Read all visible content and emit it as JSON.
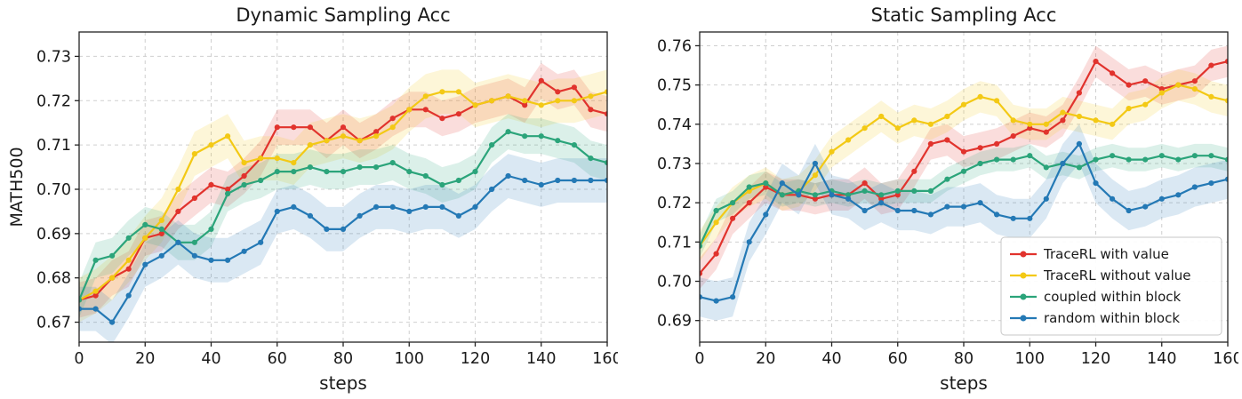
{
  "figure": {
    "background": "#ffffff"
  },
  "chart_data": [
    {
      "type": "line",
      "title": "Dynamic Sampling Acc",
      "xlabel": "steps",
      "ylabel": "MATH500",
      "xlim": [
        0,
        160
      ],
      "ylim": [
        0.6655,
        0.7355
      ],
      "xticks": [
        0,
        20,
        40,
        60,
        80,
        100,
        120,
        140,
        160
      ],
      "yticks": [
        0.67,
        0.68,
        0.69,
        0.7,
        0.71,
        0.72,
        0.73
      ],
      "grid": true,
      "legend": false,
      "x": [
        0,
        5,
        10,
        15,
        20,
        25,
        30,
        35,
        40,
        45,
        50,
        55,
        60,
        65,
        70,
        75,
        80,
        85,
        90,
        95,
        100,
        105,
        110,
        115,
        120,
        125,
        130,
        135,
        140,
        145,
        150,
        155,
        160
      ],
      "series": [
        {
          "name": "TraceRL with value",
          "color": "#e1332d",
          "band": 0.004,
          "values": [
            0.675,
            0.676,
            0.68,
            0.682,
            0.689,
            0.69,
            0.695,
            0.698,
            0.701,
            0.7,
            0.703,
            0.707,
            0.714,
            0.714,
            0.714,
            0.711,
            0.714,
            0.711,
            0.713,
            0.716,
            0.718,
            0.718,
            0.716,
            0.717,
            0.719,
            0.72,
            0.721,
            0.719,
            0.7245,
            0.722,
            0.723,
            0.718,
            0.717
          ]
        },
        {
          "name": "TraceRL without value",
          "color": "#f3c915",
          "band": 0.005,
          "values": [
            0.675,
            0.677,
            0.68,
            0.684,
            0.689,
            0.693,
            0.7,
            0.708,
            0.71,
            0.712,
            0.706,
            0.707,
            0.707,
            0.706,
            0.71,
            0.711,
            0.712,
            0.711,
            0.712,
            0.714,
            0.718,
            0.721,
            0.722,
            0.722,
            0.719,
            0.72,
            0.721,
            0.72,
            0.719,
            0.72,
            0.72,
            0.721,
            0.722
          ]
        },
        {
          "name": "coupled within block",
          "color": "#2ba47a",
          "band": 0.004,
          "values": [
            0.675,
            0.684,
            0.685,
            0.689,
            0.692,
            0.691,
            0.688,
            0.688,
            0.691,
            0.699,
            0.701,
            0.702,
            0.704,
            0.704,
            0.705,
            0.704,
            0.704,
            0.705,
            0.705,
            0.706,
            0.704,
            0.703,
            0.701,
            0.702,
            0.704,
            0.71,
            0.713,
            0.712,
            0.712,
            0.711,
            0.71,
            0.707,
            0.706
          ]
        },
        {
          "name": "random within block",
          "color": "#2479b5",
          "band": 0.005,
          "values": [
            0.673,
            0.673,
            0.67,
            0.676,
            0.683,
            0.685,
            0.688,
            0.685,
            0.684,
            0.684,
            0.686,
            0.688,
            0.695,
            0.696,
            0.694,
            0.691,
            0.691,
            0.694,
            0.696,
            0.696,
            0.695,
            0.696,
            0.696,
            0.694,
            0.696,
            0.7,
            0.703,
            0.702,
            0.701,
            0.702,
            0.702,
            0.702,
            0.702
          ]
        }
      ]
    },
    {
      "type": "line",
      "title": "Static Sampling Acc",
      "xlabel": "steps",
      "ylabel": "",
      "xlim": [
        0,
        160
      ],
      "ylim": [
        0.6845,
        0.7635
      ],
      "xticks": [
        0,
        20,
        40,
        60,
        80,
        100,
        120,
        140,
        160
      ],
      "yticks": [
        0.69,
        0.7,
        0.71,
        0.72,
        0.73,
        0.74,
        0.75,
        0.76
      ],
      "grid": true,
      "legend": true,
      "x": [
        0,
        5,
        10,
        15,
        20,
        25,
        30,
        35,
        40,
        45,
        50,
        55,
        60,
        65,
        70,
        75,
        80,
        85,
        90,
        95,
        100,
        105,
        110,
        115,
        120,
        125,
        130,
        135,
        140,
        145,
        150,
        155,
        160
      ],
      "series": [
        {
          "name": "TraceRL with value",
          "color": "#e1332d",
          "band": 0.004,
          "values": [
            0.702,
            0.707,
            0.716,
            0.72,
            0.724,
            0.722,
            0.722,
            0.721,
            0.722,
            0.722,
            0.725,
            0.721,
            0.722,
            0.728,
            0.735,
            0.736,
            0.733,
            0.734,
            0.735,
            0.737,
            0.739,
            0.738,
            0.741,
            0.748,
            0.756,
            0.753,
            0.75,
            0.751,
            0.749,
            0.75,
            0.751,
            0.755,
            0.756
          ]
        },
        {
          "name": "TraceRL without value",
          "color": "#f3c915",
          "band": 0.004,
          "values": [
            0.709,
            0.715,
            0.72,
            0.723,
            0.725,
            0.722,
            0.723,
            0.727,
            0.733,
            0.736,
            0.739,
            0.742,
            0.739,
            0.741,
            0.74,
            0.742,
            0.745,
            0.747,
            0.746,
            0.741,
            0.74,
            0.74,
            0.743,
            0.742,
            0.741,
            0.74,
            0.744,
            0.745,
            0.748,
            0.75,
            0.749,
            0.747,
            0.746
          ]
        },
        {
          "name": "coupled within block",
          "color": "#2ba47a",
          "band": 0.003,
          "values": [
            0.709,
            0.718,
            0.72,
            0.724,
            0.725,
            0.722,
            0.723,
            0.722,
            0.723,
            0.722,
            0.723,
            0.722,
            0.723,
            0.723,
            0.723,
            0.726,
            0.728,
            0.73,
            0.731,
            0.731,
            0.732,
            0.729,
            0.73,
            0.729,
            0.731,
            0.732,
            0.731,
            0.731,
            0.732,
            0.731,
            0.732,
            0.732,
            0.731
          ]
        },
        {
          "name": "random within block",
          "color": "#2479b5",
          "band": 0.005,
          "values": [
            0.696,
            0.695,
            0.696,
            0.71,
            0.717,
            0.725,
            0.722,
            0.73,
            0.722,
            0.721,
            0.718,
            0.72,
            0.718,
            0.718,
            0.717,
            0.719,
            0.719,
            0.72,
            0.717,
            0.716,
            0.716,
            0.721,
            0.73,
            0.735,
            0.725,
            0.721,
            0.718,
            0.719,
            0.721,
            0.722,
            0.724,
            0.725,
            0.726
          ]
        }
      ]
    }
  ]
}
